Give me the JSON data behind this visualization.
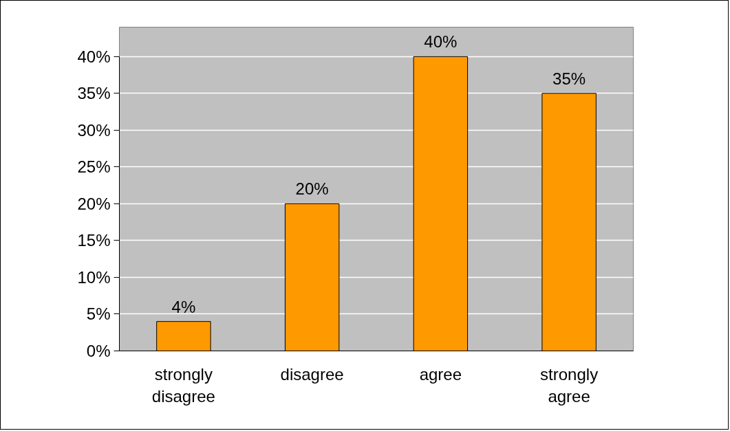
{
  "chart_data": {
    "type": "bar",
    "categories": [
      "strongly disagree",
      "disagree",
      "agree",
      "strongly agree"
    ],
    "values": [
      4,
      20,
      40,
      35
    ],
    "value_labels": [
      "4%",
      "20%",
      "40%",
      "35%"
    ],
    "color": "#ff9900",
    "ylim": [
      0,
      40
    ],
    "yticks": [
      {
        "value": 0,
        "label": "0%"
      },
      {
        "value": 5,
        "label": "5%"
      },
      {
        "value": 10,
        "label": "10%"
      },
      {
        "value": 15,
        "label": "15%"
      },
      {
        "value": 20,
        "label": "20%"
      },
      {
        "value": 25,
        "label": "25%"
      },
      {
        "value": 30,
        "label": "30%"
      },
      {
        "value": 35,
        "label": "35%"
      },
      {
        "value": 40,
        "label": "40%"
      }
    ],
    "grid": "y"
  }
}
